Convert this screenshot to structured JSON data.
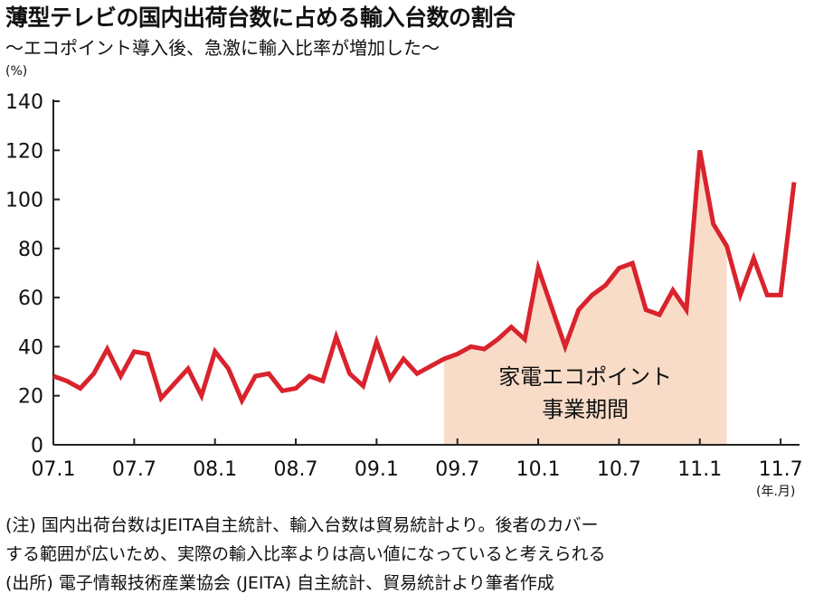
{
  "title": "薄型テレビの国内出荷台数に占める輸入台数の割合",
  "subtitle": "〜エコポイント導入後、急激に輸入比率が増加した〜",
  "y_unit": "(%)",
  "x_unit": "(年.月)",
  "notes": [
    "(注) 国内出荷台数はJEITA自主統計、輸入台数は貿易統計より。後者のカバー",
    "する範囲が広いため、実際の輸入比率よりは高い値になっていると考えられる",
    "(出所) 電子情報技術産業協会 (JEITA) 自主統計、貿易統計より筆者作成"
  ],
  "colors": {
    "line": "#d9232d",
    "shade": "#f9dcc8",
    "axis": "#222222"
  },
  "chart_data": {
    "type": "line",
    "title": "薄型テレビの国内出荷台数に占める輸入台数の割合",
    "subtitle": "〜エコポイント導入後、急激に輸入比率が増加した〜",
    "ylabel": "(%)",
    "xlabel": "(年.月)",
    "ylim": [
      0,
      140
    ],
    "yticks": [
      0,
      20,
      40,
      60,
      80,
      100,
      120,
      140
    ],
    "xtick_labels": [
      "07.1",
      "07.7",
      "08.1",
      "08.7",
      "09.1",
      "09.7",
      "10.1",
      "10.7",
      "11.1",
      "11.7"
    ],
    "xtick_index": [
      0,
      6,
      12,
      18,
      24,
      30,
      36,
      42,
      48,
      54
    ],
    "grid": false,
    "shaded_region": {
      "label_lines": [
        "家電エコポイント",
        "事業期間"
      ],
      "start_index": 29,
      "end_index": 50
    },
    "series": [
      {
        "values": [
          28,
          26,
          23,
          29,
          39,
          28,
          38,
          37,
          19,
          25,
          31,
          20,
          38,
          31,
          18,
          28,
          29,
          22,
          23,
          28,
          26,
          44,
          29,
          24,
          42,
          27,
          35,
          29,
          32,
          35,
          37,
          40,
          39,
          43,
          48,
          43,
          72,
          56,
          40,
          55,
          61,
          65,
          72,
          74,
          55,
          53,
          63,
          55,
          120,
          90,
          81,
          61,
          76,
          61,
          61,
          107
        ]
      }
    ]
  }
}
